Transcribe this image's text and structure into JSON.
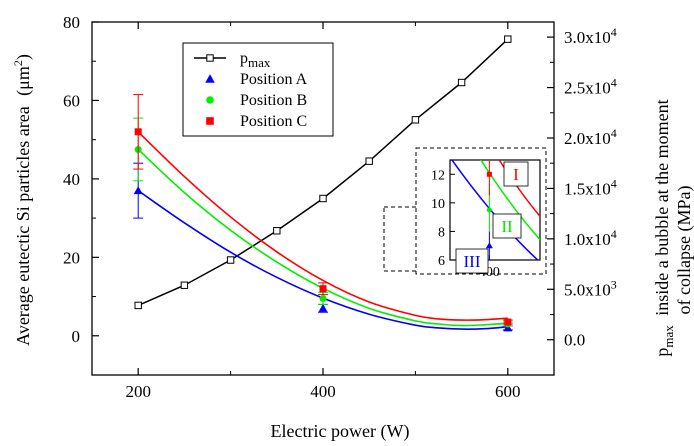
{
  "chart_data": {
    "type": "scatter",
    "xlabel": "Electric power (W)",
    "ylabel_left": "Average eutectic Si particles area",
    "ylabel_left_unit": "(μm",
    "ylabel_left_unit_exp": "2",
    "ylabel_left_unit_close": ")",
    "ylabel_right_main": "inside a bubble at the moment",
    "ylabel_right_sub": "of collapse (MPa)",
    "ylabel_right_p": "p",
    "ylabel_right_sub_max": "max",
    "xlim": [
      150,
      650
    ],
    "ylim_left": [
      -10,
      80
    ],
    "ylim_right": [
      -3500,
      31500
    ],
    "x_ticks": [
      200,
      400,
      600
    ],
    "y_ticks_left": [
      0,
      20,
      40,
      60,
      80
    ],
    "y_ticks_right": [
      {
        "value": 0,
        "label": "0.0"
      },
      {
        "value": 5000,
        "label": "5.0x10",
        "exp": "3"
      },
      {
        "value": 10000,
        "label": "1.0x10",
        "exp": "4"
      },
      {
        "value": 15000,
        "label": "1.5x10",
        "exp": "4"
      },
      {
        "value": 20000,
        "label": "2.0x10",
        "exp": "4"
      },
      {
        "value": 25000,
        "label": "2.5x10",
        "exp": "4"
      },
      {
        "value": 30000,
        "label": "3.0x10",
        "exp": "4"
      }
    ],
    "legend_placement": "top-left",
    "series": [
      {
        "name": "p",
        "name_sub": "max",
        "marker": "open-square",
        "color": "#000000",
        "axis": "right",
        "x": [
          200,
          250,
          300,
          350,
          400,
          450,
          500,
          550,
          600
        ],
        "y": [
          3400,
          5400,
          7900,
          10800,
          14000,
          17700,
          21800,
          25500,
          29800
        ]
      },
      {
        "name": "Position A",
        "marker": "triangle",
        "color": "#0000ff",
        "axis": "left",
        "x": [
          200,
          400,
          600
        ],
        "y": [
          37,
          7,
          2
        ],
        "err": [
          7,
          1,
          0.5
        ],
        "fit": [
          [
            200,
            37
          ],
          [
            250,
            28.8
          ],
          [
            300,
            21.3
          ],
          [
            350,
            14.9
          ],
          [
            400,
            9.6
          ],
          [
            450,
            5.5
          ],
          [
            500,
            2.7
          ],
          [
            525,
            2.0
          ],
          [
            550,
            1.7
          ],
          [
            575,
            1.8
          ],
          [
            600,
            2.3
          ]
        ]
      },
      {
        "name": "Position B",
        "marker": "circle",
        "color": "#00ee00",
        "axis": "left",
        "x": [
          200,
          400,
          600
        ],
        "y": [
          47.5,
          9.5,
          3
        ],
        "err": [
          8,
          1.5,
          0.5
        ],
        "fit": [
          [
            200,
            47.5
          ],
          [
            250,
            36.5
          ],
          [
            300,
            26.9
          ],
          [
            350,
            18.8
          ],
          [
            400,
            12.1
          ],
          [
            450,
            7.0
          ],
          [
            500,
            3.8
          ],
          [
            525,
            3.0
          ],
          [
            550,
            2.6
          ],
          [
            575,
            2.8
          ],
          [
            600,
            3.2
          ]
        ]
      },
      {
        "name": "Position C",
        "marker": "square",
        "color": "#ff0000",
        "axis": "left",
        "x": [
          200,
          400,
          600
        ],
        "y": [
          52,
          12,
          3.5
        ],
        "err": [
          9.5,
          1.5,
          0.5
        ],
        "fit": [
          [
            200,
            52
          ],
          [
            250,
            40.6
          ],
          [
            300,
            30.3
          ],
          [
            350,
            21.4
          ],
          [
            400,
            14.1
          ],
          [
            450,
            8.6
          ],
          [
            500,
            5.2
          ],
          [
            525,
            4.3
          ],
          [
            550,
            4.0
          ],
          [
            575,
            4.1
          ],
          [
            600,
            4.5
          ]
        ]
      }
    ],
    "inset": {
      "xlim": [
        365,
        445
      ],
      "ylim": [
        6,
        13
      ],
      "x_ticks": [
        400
      ],
      "y_ticks": [
        6,
        8,
        10,
        12
      ],
      "labels": [
        {
          "text": "I",
          "color": "#ff0000"
        },
        {
          "text": "II",
          "color": "#00ee00"
        },
        {
          "text": "III",
          "color": "#0000ff"
        }
      ]
    }
  }
}
